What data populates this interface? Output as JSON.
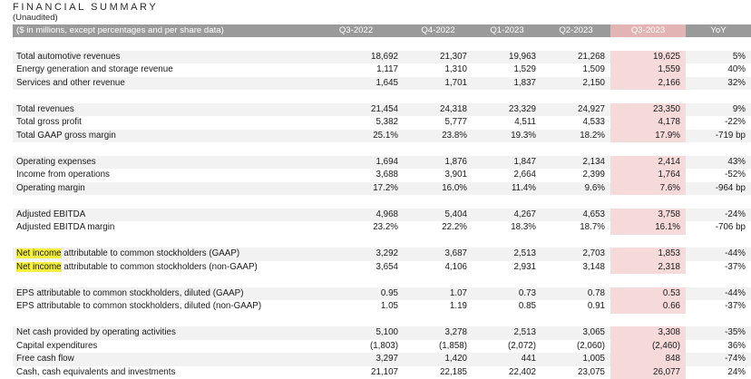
{
  "title": "FINANCIAL SUMMARY",
  "subtitle": "(Unaudited)",
  "header": [
    "($ in millions, except percentages and per share data)",
    "Q3-2022",
    "Q4-2022",
    "Q1-2023",
    "Q2-2023",
    "Q3-2023",
    "YoY"
  ],
  "sections": [
    {
      "rows": [
        {
          "label": "Total automotive revenues",
          "values": [
            "18,692",
            "21,307",
            "19,963",
            "21,268",
            "19,625",
            "5%"
          ]
        },
        {
          "label": "Energy generation and storage revenue",
          "values": [
            "1,117",
            "1,310",
            "1,529",
            "1,509",
            "1,559",
            "40%"
          ]
        },
        {
          "label": "Services and other revenue",
          "values": [
            "1,645",
            "1,701",
            "1,837",
            "2,150",
            "2,166",
            "32%"
          ]
        }
      ]
    },
    {
      "rows": [
        {
          "label": "Total revenues",
          "values": [
            "21,454",
            "24,318",
            "23,329",
            "24,927",
            "23,350",
            "9%"
          ]
        },
        {
          "label": "Total gross profit",
          "values": [
            "5,382",
            "5,777",
            "4,511",
            "4,533",
            "4,178",
            "-22%"
          ]
        },
        {
          "label": "Total GAAP gross margin",
          "values": [
            "25.1%",
            "23.8%",
            "19.3%",
            "18.2%",
            "17.9%",
            "-719 bp"
          ]
        }
      ]
    },
    {
      "rows": [
        {
          "label": "Operating expenses",
          "values": [
            "1,694",
            "1,876",
            "1,847",
            "2,134",
            "2,414",
            "43%"
          ]
        },
        {
          "label": "Income from operations",
          "values": [
            "3,688",
            "3,901",
            "2,664",
            "2,399",
            "1,764",
            "-52%"
          ]
        },
        {
          "label": "Operating margin",
          "values": [
            "17.2%",
            "16.0%",
            "11.4%",
            "9.6%",
            "7.6%",
            "-964 bp"
          ]
        }
      ]
    },
    {
      "rows": [
        {
          "label": "Adjusted EBITDA",
          "values": [
            "4,968",
            "5,404",
            "4,267",
            "4,653",
            "3,758",
            "-24%"
          ]
        },
        {
          "label": "Adjusted EBITDA margin",
          "values": [
            "23.2%",
            "22.2%",
            "18.3%",
            "18.7%",
            "16.1%",
            "-706 bp"
          ]
        }
      ]
    },
    {
      "rows": [
        {
          "label_hl": "Net income",
          "label_rest": " attributable to common stockholders (GAAP)",
          "values": [
            "3,292",
            "3,687",
            "2,513",
            "2,703",
            "1,853",
            "-44%"
          ]
        },
        {
          "label_hl": "Net income",
          "label_rest": " attributable to common stockholders (non-GAAP)",
          "values": [
            "3,654",
            "4,106",
            "2,931",
            "3,148",
            "2,318",
            "-37%"
          ]
        }
      ]
    },
    {
      "rows": [
        {
          "label": "EPS attributable to common stockholders, diluted (GAAP)",
          "values": [
            "0.95",
            "1.07",
            "0.73",
            "0.78",
            "0.53",
            "-44%"
          ]
        },
        {
          "label": "EPS attributable to common stockholders, diluted (non-GAAP)",
          "values": [
            "1.05",
            "1.19",
            "0.85",
            "0.91",
            "0.66",
            "-37%"
          ]
        }
      ]
    },
    {
      "rows": [
        {
          "label": "Net cash provided by operating activities",
          "values": [
            "5,100",
            "3,278",
            "2,513",
            "3,065",
            "3,308",
            "-35%"
          ]
        },
        {
          "label": "Capital expenditures",
          "values": [
            "(1,803)",
            "(1,858)",
            "(2,072)",
            "(2,060)",
            "(2,460)",
            "36%"
          ]
        },
        {
          "label": "Free cash flow",
          "values": [
            "3,297",
            "1,420",
            "441",
            "1,005",
            "848",
            "-74%"
          ]
        },
        {
          "label": "Cash, cash equivalents and investments",
          "values": [
            "21,107",
            "22,185",
            "22,402",
            "23,075",
            "26,077",
            "24%"
          ]
        }
      ]
    }
  ]
}
